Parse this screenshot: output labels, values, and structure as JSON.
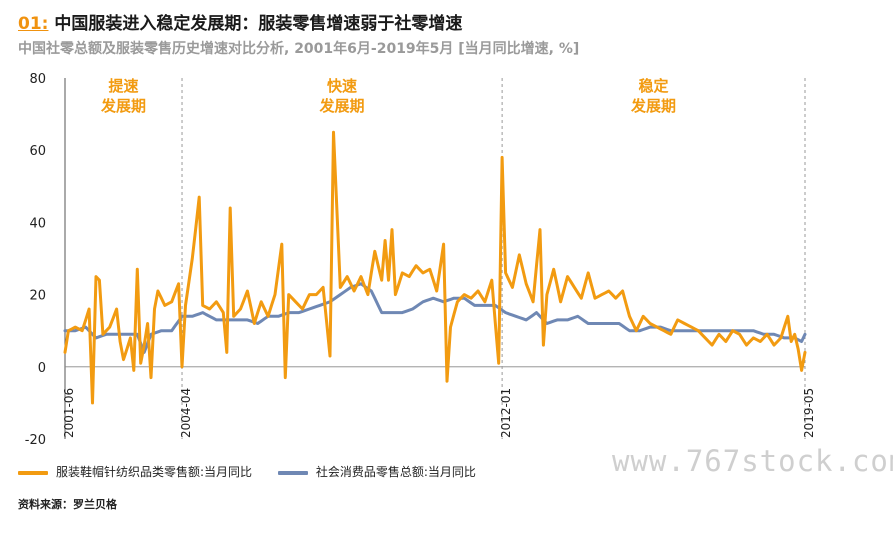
{
  "header": {
    "number": "01:",
    "title": "中国服装进入稳定发展期：服装零售增速弱于社零增速",
    "subtitle": "中国社零总额及服装零售历史增速对比分析, 2001年6月-2019年5月 [当月同比增速, %]"
  },
  "footer": {
    "source": "资料来源：罗兰贝格",
    "watermark": "www.767stock.com"
  },
  "chart_data": {
    "type": "line",
    "ylim": [
      -20,
      80
    ],
    "yticks": [
      "80",
      "60",
      "40",
      "20",
      "0",
      "-20"
    ],
    "x_range": [
      "2001-06",
      "2019-05"
    ],
    "period_dividers": [
      "2004-04",
      "2012-01",
      "2019-05"
    ],
    "x_tick_labels": [
      "2001-06",
      "2004-04",
      "2012-01",
      "2019-05"
    ],
    "phases": [
      {
        "line1": "提速",
        "line2": "发展期"
      },
      {
        "line1": "快速",
        "line2": "发展期"
      },
      {
        "line1": "稳定",
        "line2": "发展期"
      }
    ],
    "colors": {
      "apparel": "#f29b11",
      "total": "#6f88b4"
    },
    "series": [
      {
        "name": "服装鞋帽针纺织品类零售额:当月同比",
        "color": "#f29b11",
        "anchors": [
          [
            "2001-06",
            4
          ],
          [
            "2001-07",
            10
          ],
          [
            "2001-09",
            11
          ],
          [
            "2001-11",
            10
          ],
          [
            "2002-01",
            16
          ],
          [
            "2002-02",
            -10
          ],
          [
            "2002-03",
            25
          ],
          [
            "2002-04",
            24
          ],
          [
            "2002-05",
            9
          ],
          [
            "2002-07",
            11
          ],
          [
            "2002-09",
            16
          ],
          [
            "2002-10",
            7
          ],
          [
            "2002-11",
            2
          ],
          [
            "2003-01",
            8
          ],
          [
            "2003-02",
            -1
          ],
          [
            "2003-03",
            27
          ],
          [
            "2003-04",
            1
          ],
          [
            "2003-05",
            6
          ],
          [
            "2003-06",
            12
          ],
          [
            "2003-07",
            -3
          ],
          [
            "2003-08",
            16
          ],
          [
            "2003-09",
            21
          ],
          [
            "2003-11",
            17
          ],
          [
            "2004-01",
            18
          ],
          [
            "2004-03",
            23
          ],
          [
            "2004-04",
            0
          ],
          [
            "2004-05",
            17
          ],
          [
            "2004-07",
            30
          ],
          [
            "2004-09",
            47
          ],
          [
            "2004-10",
            17
          ],
          [
            "2004-12",
            16
          ],
          [
            "2005-02",
            18
          ],
          [
            "2005-04",
            15
          ],
          [
            "2005-05",
            4
          ],
          [
            "2005-06",
            44
          ],
          [
            "2005-07",
            14
          ],
          [
            "2005-09",
            16
          ],
          [
            "2005-11",
            21
          ],
          [
            "2006-01",
            12
          ],
          [
            "2006-03",
            18
          ],
          [
            "2006-05",
            14
          ],
          [
            "2006-07",
            20
          ],
          [
            "2006-09",
            34
          ],
          [
            "2006-10",
            -3
          ],
          [
            "2006-11",
            20
          ],
          [
            "2007-01",
            18
          ],
          [
            "2007-03",
            16
          ],
          [
            "2007-05",
            20
          ],
          [
            "2007-07",
            20
          ],
          [
            "2007-09",
            22
          ],
          [
            "2007-11",
            3
          ],
          [
            "2007-12",
            65
          ],
          [
            "2008-02",
            22
          ],
          [
            "2008-04",
            25
          ],
          [
            "2008-06",
            21
          ],
          [
            "2008-08",
            25
          ],
          [
            "2008-10",
            20
          ],
          [
            "2008-12",
            32
          ],
          [
            "2009-02",
            24
          ],
          [
            "2009-03",
            35
          ],
          [
            "2009-04",
            24
          ],
          [
            "2009-05",
            38
          ],
          [
            "2009-06",
            20
          ],
          [
            "2009-08",
            26
          ],
          [
            "2009-10",
            25
          ],
          [
            "2009-12",
            28
          ],
          [
            "2010-02",
            26
          ],
          [
            "2010-04",
            27
          ],
          [
            "2010-06",
            21
          ],
          [
            "2010-08",
            34
          ],
          [
            "2010-09",
            -4
          ],
          [
            "2010-10",
            11
          ],
          [
            "2010-12",
            18
          ],
          [
            "2011-02",
            20
          ],
          [
            "2011-04",
            19
          ],
          [
            "2011-06",
            21
          ],
          [
            "2011-08",
            18
          ],
          [
            "2011-10",
            24
          ],
          [
            "2011-12",
            1
          ],
          [
            "2012-01",
            58
          ],
          [
            "2012-02",
            26
          ],
          [
            "2012-04",
            22
          ],
          [
            "2012-06",
            31
          ],
          [
            "2012-08",
            23
          ],
          [
            "2012-10",
            18
          ],
          [
            "2012-12",
            38
          ],
          [
            "2013-01",
            6
          ],
          [
            "2013-02",
            20
          ],
          [
            "2013-04",
            27
          ],
          [
            "2013-06",
            18
          ],
          [
            "2013-08",
            25
          ],
          [
            "2013-10",
            22
          ],
          [
            "2013-12",
            19
          ],
          [
            "2014-02",
            26
          ],
          [
            "2014-04",
            19
          ],
          [
            "2014-06",
            20
          ],
          [
            "2014-08",
            21
          ],
          [
            "2014-10",
            19
          ],
          [
            "2014-12",
            21
          ],
          [
            "2015-02",
            14
          ],
          [
            "2015-04",
            10
          ],
          [
            "2015-06",
            14
          ],
          [
            "2015-08",
            12
          ],
          [
            "2015-10",
            11
          ],
          [
            "2015-12",
            10
          ],
          [
            "2016-02",
            9
          ],
          [
            "2016-04",
            13
          ],
          [
            "2016-06",
            12
          ],
          [
            "2016-08",
            11
          ],
          [
            "2016-10",
            10
          ],
          [
            "2016-12",
            8
          ],
          [
            "2017-02",
            6
          ],
          [
            "2017-04",
            9
          ],
          [
            "2017-06",
            7
          ],
          [
            "2017-08",
            10
          ],
          [
            "2017-10",
            9
          ],
          [
            "2017-12",
            6
          ],
          [
            "2018-02",
            8
          ],
          [
            "2018-04",
            7
          ],
          [
            "2018-06",
            9
          ],
          [
            "2018-08",
            6
          ],
          [
            "2018-10",
            8
          ],
          [
            "2018-12",
            14
          ],
          [
            "2019-01",
            7
          ],
          [
            "2019-02",
            9
          ],
          [
            "2019-03",
            5
          ],
          [
            "2019-04",
            -1
          ],
          [
            "2019-05",
            4
          ]
        ]
      },
      {
        "name": "社会消费品零售总额:当月同比",
        "color": "#6f88b4",
        "anchors": [
          [
            "2001-06",
            10
          ],
          [
            "2001-09",
            10
          ],
          [
            "2001-12",
            11
          ],
          [
            "2002-03",
            8
          ],
          [
            "2002-06",
            9
          ],
          [
            "2002-09",
            9
          ],
          [
            "2002-12",
            9
          ],
          [
            "2003-03",
            9
          ],
          [
            "2003-05",
            4
          ],
          [
            "2003-07",
            9
          ],
          [
            "2003-10",
            10
          ],
          [
            "2004-01",
            10
          ],
          [
            "2004-04",
            14
          ],
          [
            "2004-07",
            14
          ],
          [
            "2004-10",
            15
          ],
          [
            "2004-12",
            14
          ],
          [
            "2005-02",
            13
          ],
          [
            "2005-05",
            13
          ],
          [
            "2005-08",
            13
          ],
          [
            "2005-11",
            13
          ],
          [
            "2006-02",
            12
          ],
          [
            "2006-05",
            14
          ],
          [
            "2006-08",
            14
          ],
          [
            "2006-11",
            15
          ],
          [
            "2007-02",
            15
          ],
          [
            "2007-05",
            16
          ],
          [
            "2007-08",
            17
          ],
          [
            "2007-11",
            18
          ],
          [
            "2008-02",
            20
          ],
          [
            "2008-05",
            22
          ],
          [
            "2008-08",
            23
          ],
          [
            "2008-11",
            21
          ],
          [
            "2009-02",
            15
          ],
          [
            "2009-05",
            15
          ],
          [
            "2009-08",
            15
          ],
          [
            "2009-11",
            16
          ],
          [
            "2010-02",
            18
          ],
          [
            "2010-05",
            19
          ],
          [
            "2010-08",
            18
          ],
          [
            "2010-11",
            19
          ],
          [
            "2011-02",
            19
          ],
          [
            "2011-05",
            17
          ],
          [
            "2011-08",
            17
          ],
          [
            "2011-11",
            17
          ],
          [
            "2012-02",
            15
          ],
          [
            "2012-05",
            14
          ],
          [
            "2012-08",
            13
          ],
          [
            "2012-11",
            15
          ],
          [
            "2013-02",
            12
          ],
          [
            "2013-05",
            13
          ],
          [
            "2013-08",
            13
          ],
          [
            "2013-11",
            14
          ],
          [
            "2014-02",
            12
          ],
          [
            "2014-05",
            12
          ],
          [
            "2014-08",
            12
          ],
          [
            "2014-11",
            12
          ],
          [
            "2015-02",
            10
          ],
          [
            "2015-05",
            10
          ],
          [
            "2015-08",
            11
          ],
          [
            "2015-11",
            11
          ],
          [
            "2016-02",
            10
          ],
          [
            "2016-05",
            10
          ],
          [
            "2016-08",
            10
          ],
          [
            "2016-11",
            10
          ],
          [
            "2017-02",
            10
          ],
          [
            "2017-05",
            10
          ],
          [
            "2017-08",
            10
          ],
          [
            "2017-11",
            10
          ],
          [
            "2018-02",
            10
          ],
          [
            "2018-05",
            9
          ],
          [
            "2018-08",
            9
          ],
          [
            "2018-11",
            8
          ],
          [
            "2019-02",
            8
          ],
          [
            "2019-04",
            7
          ],
          [
            "2019-05",
            9
          ]
        ]
      }
    ]
  }
}
